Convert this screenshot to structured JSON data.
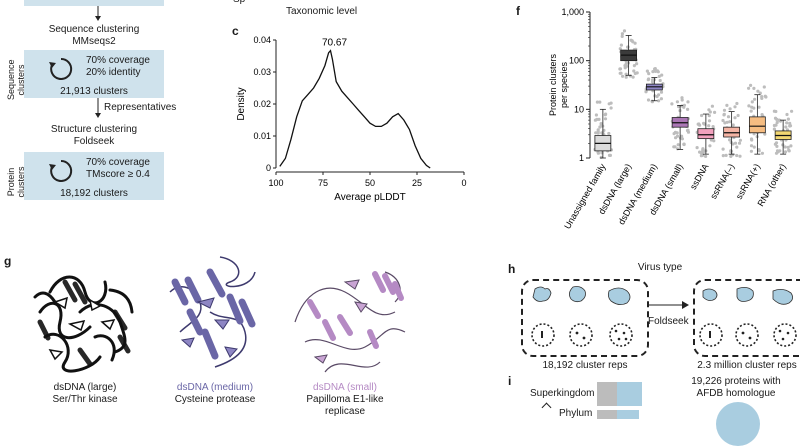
{
  "panels": {
    "c": "c",
    "f": "f",
    "g": "g",
    "h": "h",
    "i": "i"
  },
  "flow": {
    "step1_title": "Sequence clustering",
    "step1_tool": "MMseqs2",
    "seq_group_label_1": "Sequence",
    "seq_group_label_2": "clusters",
    "seq_coverage": "70% coverage",
    "seq_identity": "20% identity",
    "seq_count": "21,913 clusters",
    "representatives": "Representatives",
    "step2_title": "Structure clustering",
    "step2_tool": "Foldseek",
    "prot_group_label_1": "Protein",
    "prot_group_label_2": "clusters",
    "prot_coverage": "70% coverage",
    "prot_tmscore": "TMscore ≥ 0.4",
    "prot_count": "18,192 clusters"
  },
  "top_partial": {
    "axis_fragment": "Sp",
    "taxonomic_level": "Taxonomic level"
  },
  "chart_c": {
    "type": "line",
    "xlabel": "Average pLDDT",
    "ylabel": "Density",
    "xlim": [
      100,
      0
    ],
    "ylim": [
      0,
      0.04
    ],
    "x_ticks": [
      "100",
      "75",
      "50",
      "25",
      "0"
    ],
    "y_ticks": [
      "0",
      "0.01",
      "0.02",
      "0.03",
      "0.04"
    ],
    "peak_label": "70.67",
    "x": [
      98,
      95,
      92,
      89,
      86,
      83,
      80,
      77,
      74,
      72,
      71,
      70,
      68,
      65,
      62,
      59,
      56,
      53,
      50,
      47,
      44,
      41,
      38,
      35,
      32,
      29,
      26,
      23,
      20,
      18
    ],
    "y": [
      0.0005,
      0.003,
      0.009,
      0.016,
      0.021,
      0.023,
      0.025,
      0.028,
      0.032,
      0.036,
      0.0367,
      0.034,
      0.027,
      0.024,
      0.022,
      0.02,
      0.018,
      0.016,
      0.014,
      0.013,
      0.013,
      0.014,
      0.016,
      0.017,
      0.015,
      0.012,
      0.007,
      0.003,
      0.0008,
      0.0
    ]
  },
  "chart_f": {
    "type": "box",
    "ylabel": "Protein clusters per species",
    "ylog": true,
    "ylim": [
      1,
      1000
    ],
    "y_ticks": [
      "1",
      "10",
      "100",
      "1,000"
    ],
    "categories": [
      {
        "name": "Unassigned family",
        "color": "#dcdcdc",
        "q1": 1.4,
        "median": 2.0,
        "q3": 2.9,
        "wlo": 1.0,
        "whi": 10
      },
      {
        "name": "dsDNA (large)",
        "color": "#3b3b3b",
        "q1": 100,
        "median": 130,
        "q3": 165,
        "wlo": 50,
        "whi": 330
      },
      {
        "name": "dsDNA (medium)",
        "color": "#8e86c4",
        "q1": 25,
        "median": 29,
        "q3": 33,
        "wlo": 15,
        "whi": 45
      },
      {
        "name": "dsDNA (small)",
        "color": "#ab77b5",
        "q1": 4.3,
        "median": 5.3,
        "q3": 6.8,
        "wlo": 1.5,
        "whi": 12
      },
      {
        "name": "ssDNA",
        "color": "#f2a1bd",
        "q1": 2.5,
        "median": 3.0,
        "q3": 4.0,
        "wlo": 1.2,
        "whi": 8
      },
      {
        "name": "ssRNA(–)",
        "color": "#f5b4a4",
        "q1": 2.7,
        "median": 3.3,
        "q3": 4.3,
        "wlo": 1.2,
        "whi": 9
      },
      {
        "name": "ssRNA(+)",
        "color": "#f6bd82",
        "q1": 3.3,
        "median": 4.5,
        "q3": 7.0,
        "wlo": 1.2,
        "whi": 20
      },
      {
        "name": "RNA (other)",
        "color": "#f2d772",
        "q1": 2.4,
        "median": 2.9,
        "q3": 3.6,
        "wlo": 1.2,
        "whi": 6
      }
    ]
  },
  "panel_g": {
    "s1_name": "dsDNA (large)",
    "s1_desc": "Ser/Thr kinase",
    "s2_name": "dsDNA (medium)",
    "s2_desc": "Cysteine protease",
    "s3_name": "dsDNA (small)",
    "s3_desc_1": "Papilloma E1-like",
    "s3_desc_2": "replicase",
    "s2_color": "#6a66a6",
    "s3_color": "#b58ac4"
  },
  "panel_h": {
    "title": "Virus type",
    "arrow_label": "Foldseek",
    "left_caption": "18,192 cluster reps",
    "right_caption": "2.3 million cluster reps"
  },
  "panel_i": {
    "bar1": "Superkingdom",
    "bar2": "Phylum",
    "right_1": "19,226 proteins with",
    "right_2": "AFDB homologue"
  }
}
